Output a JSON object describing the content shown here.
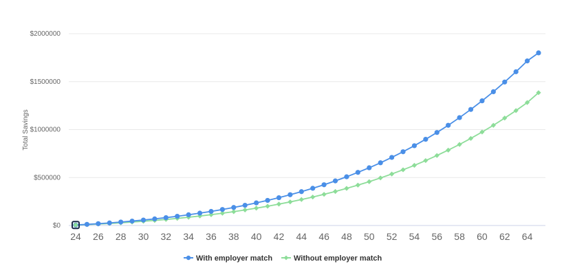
{
  "chart_data": {
    "type": "line",
    "title": "",
    "xlabel": "",
    "ylabel": "Total Savings",
    "x": [
      24,
      25,
      26,
      27,
      28,
      29,
      30,
      31,
      32,
      33,
      34,
      35,
      36,
      37,
      38,
      39,
      40,
      41,
      42,
      43,
      44,
      45,
      46,
      47,
      48,
      49,
      50,
      51,
      52,
      53,
      54,
      55,
      56,
      57,
      58,
      59,
      60,
      61,
      62,
      63,
      64,
      65
    ],
    "x_ticks": [
      "24",
      "26",
      "28",
      "30",
      "32",
      "34",
      "36",
      "38",
      "40",
      "42",
      "44",
      "46",
      "48",
      "50",
      "52",
      "54",
      "56",
      "58",
      "60",
      "62",
      "64"
    ],
    "y_ticks": [
      "$0",
      "$500000",
      "$1000000",
      "$1500000",
      "$2000000"
    ],
    "ylim": [
      0,
      2000000
    ],
    "xlim": [
      24,
      65
    ],
    "grid": "horizontal",
    "legend_position": "bottom-center",
    "series": [
      {
        "name": "With employer match",
        "color": "#4a8fe7",
        "marker": "circle",
        "values": [
          5000,
          12000,
          19000,
          27000,
          36000,
          46000,
          57000,
          69000,
          82000,
          96000,
          112000,
          129000,
          147000,
          167000,
          188000,
          211000,
          236000,
          262000,
          290000,
          321000,
          353000,
          388000,
          425000,
          465000,
          508000,
          554000,
          602000,
          654000,
          710000,
          769000,
          832000,
          899000,
          970000,
          1045000,
          1125000,
          1210000,
          1300000,
          1395000,
          1496000,
          1603000,
          1716000,
          1800000
        ]
      },
      {
        "name": "Without employer match",
        "color": "#8ddd99",
        "marker": "diamond",
        "values": [
          4000,
          9000,
          15000,
          21000,
          28000,
          36000,
          44000,
          53000,
          63000,
          74000,
          86000,
          99000,
          113000,
          128000,
          144000,
          162000,
          181000,
          201000,
          223000,
          246000,
          271000,
          297000,
          325000,
          355000,
          387000,
          421000,
          457000,
          496000,
          537000,
          581000,
          627000,
          677000,
          730000,
          786000,
          845000,
          908000,
          975000,
          1045000,
          1120000,
          1198000,
          1282000,
          1385000
        ]
      }
    ]
  }
}
